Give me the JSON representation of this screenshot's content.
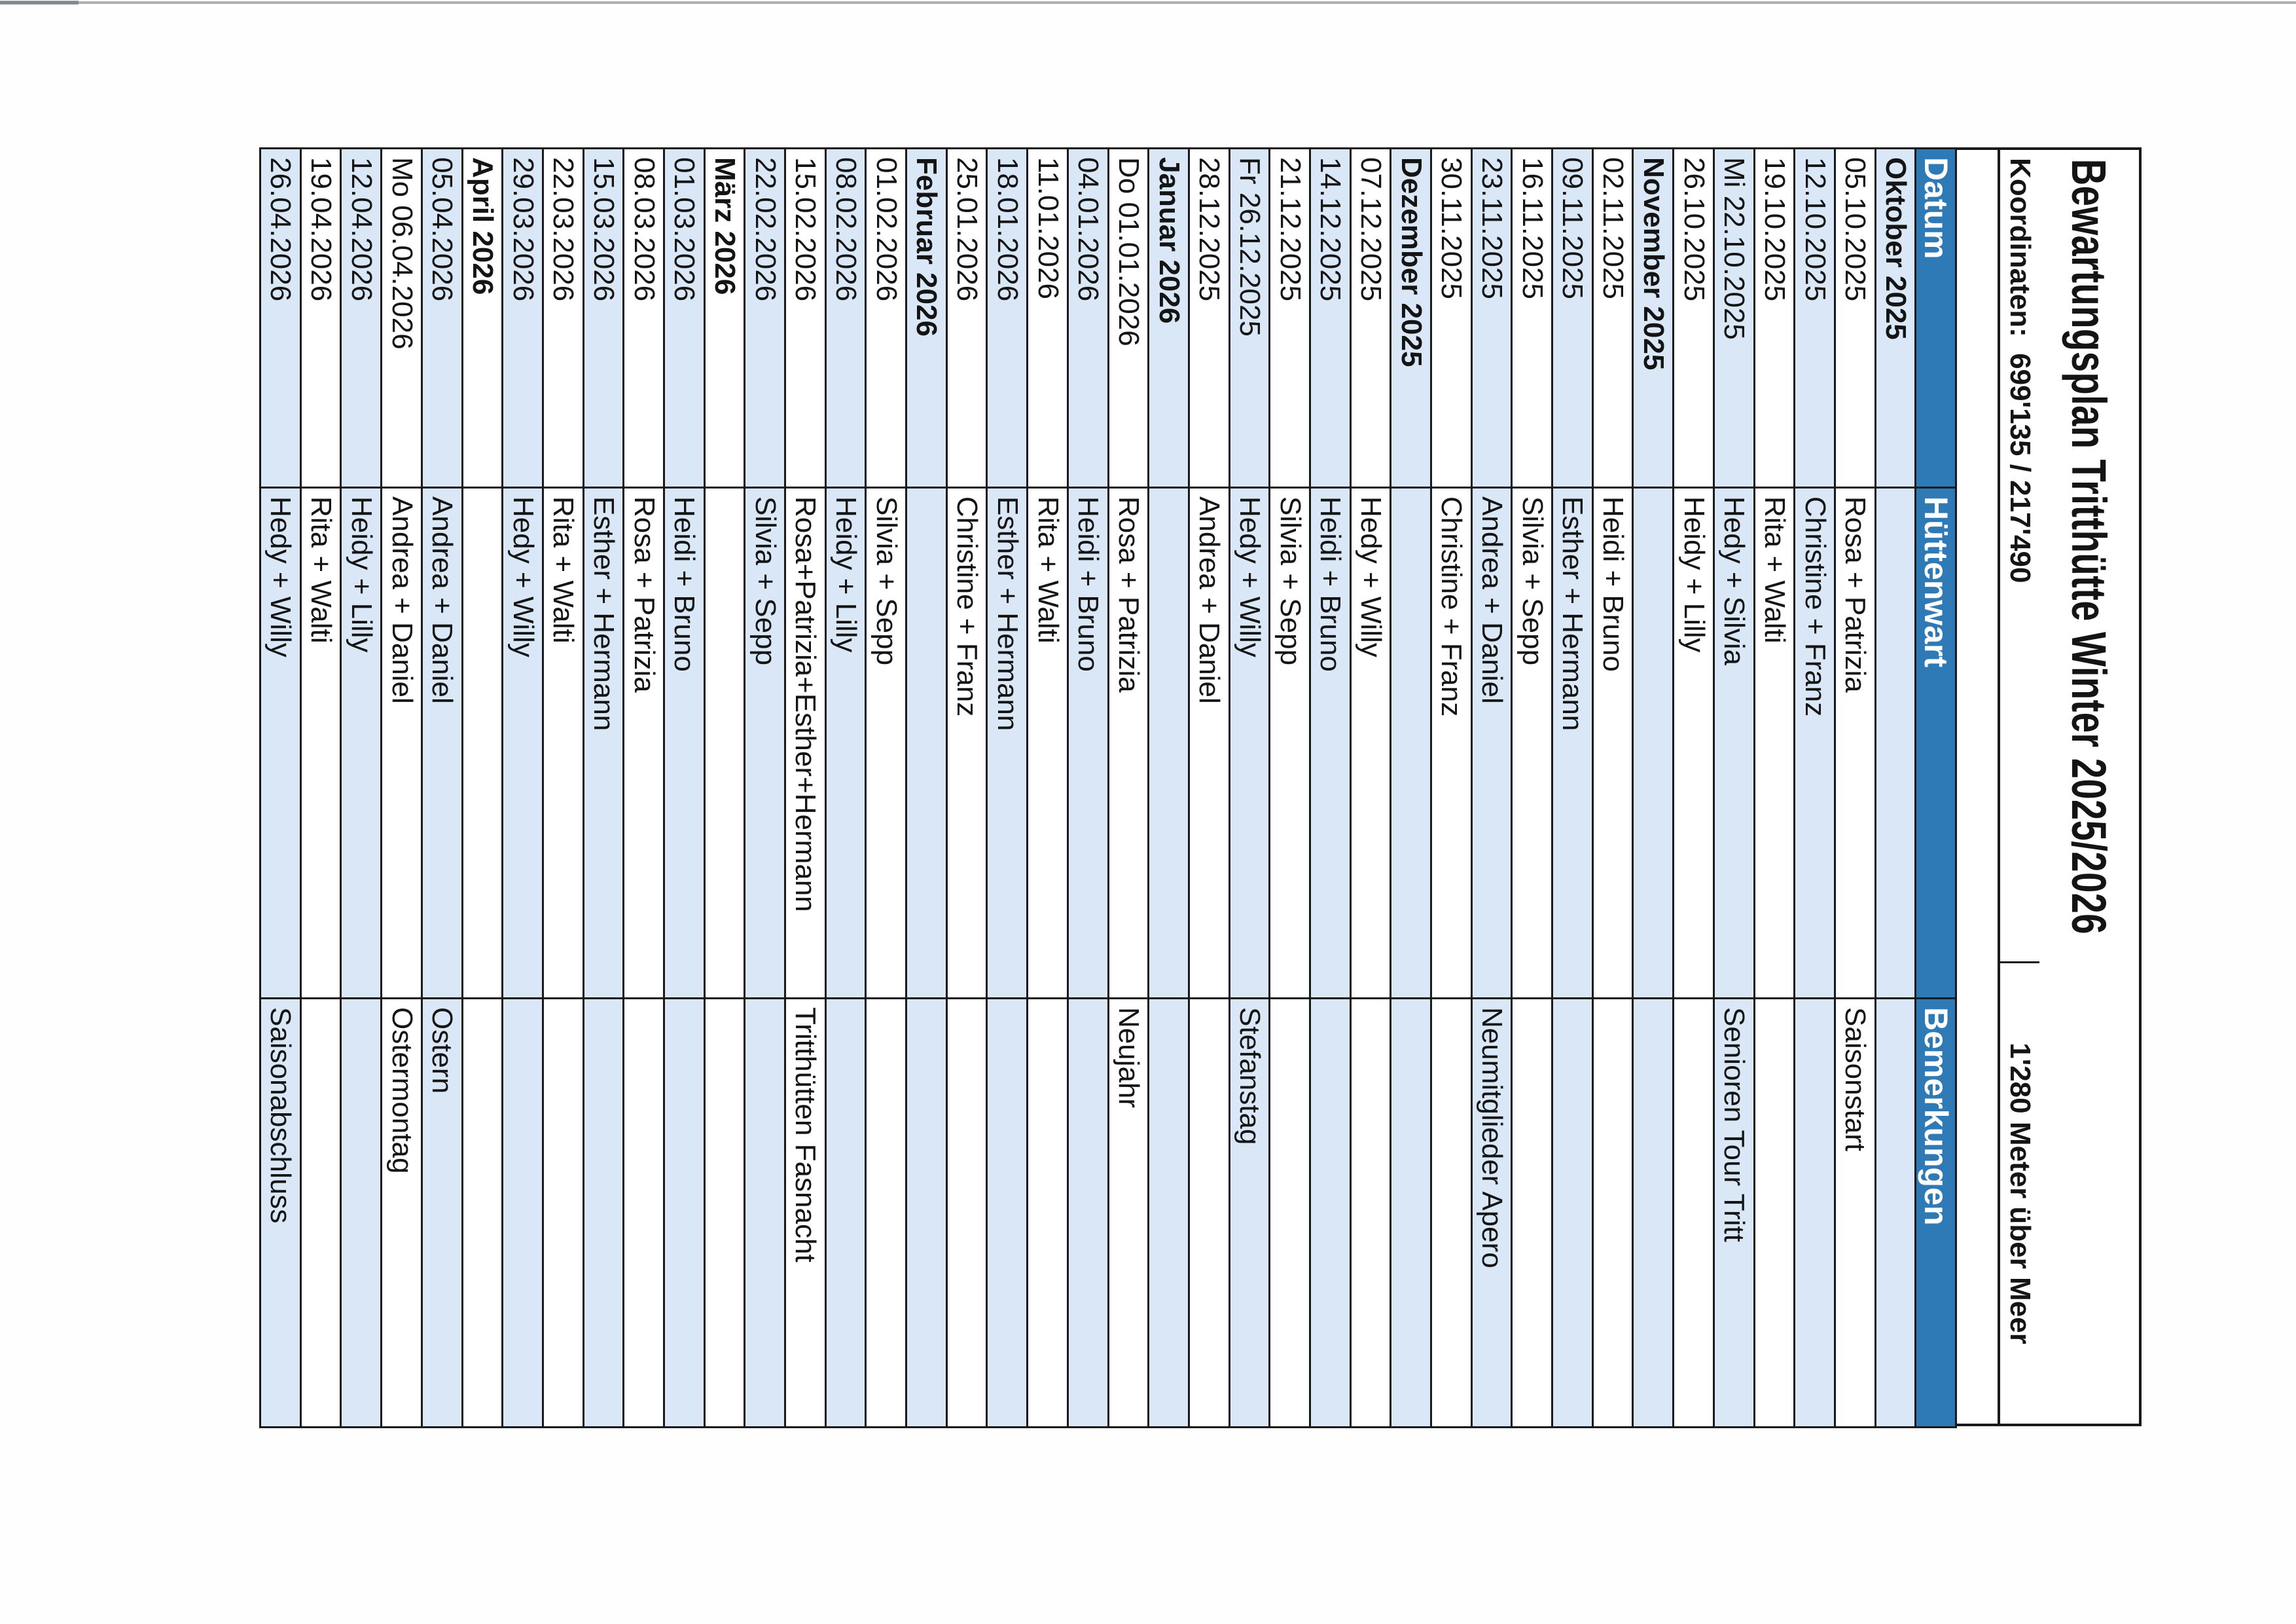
{
  "page": {
    "title": "Bewartungsplan Tritthütte Winter 2025/2026",
    "coordinates": "Koordinaten:  699'135 / 217'490",
    "altitude": "1'280 Meter über Meer"
  },
  "colors": {
    "header_blue": "#2e7ab7",
    "row_stripe": "#d9e7f6",
    "border": "#1a1a1a"
  },
  "table": {
    "columns": [
      "Datum",
      "Hüttenwart",
      "Bemerkungen"
    ],
    "rows": [
      {
        "type": "month",
        "datum": "Oktober 2025",
        "huettenwart": "",
        "bemerkung": ""
      },
      {
        "type": "day",
        "datum": "05.10.2025",
        "huettenwart": "Rosa + Patrizia",
        "bemerkung": "Saisonstart"
      },
      {
        "type": "day",
        "datum": "12.10.2025",
        "huettenwart": "Christine + Franz",
        "bemerkung": ""
      },
      {
        "type": "day",
        "datum": "19.10.2025",
        "huettenwart": "Rita + Walti",
        "bemerkung": ""
      },
      {
        "type": "day",
        "datum": "Mi 22.10.2025",
        "huettenwart": "Hedy + Silvia",
        "bemerkung": "Senioren Tour Tritt"
      },
      {
        "type": "day",
        "datum": "26.10.2025",
        "huettenwart": "Heidy + Lilly",
        "bemerkung": ""
      },
      {
        "type": "month",
        "datum": "November 2025",
        "huettenwart": "",
        "bemerkung": ""
      },
      {
        "type": "day",
        "datum": "02.11.2025",
        "huettenwart": "Heidi + Bruno",
        "bemerkung": ""
      },
      {
        "type": "day",
        "datum": "09.11.2025",
        "huettenwart": "Esther + Hermann",
        "bemerkung": ""
      },
      {
        "type": "day",
        "datum": "16.11.2025",
        "huettenwart": "Silvia + Sepp",
        "bemerkung": ""
      },
      {
        "type": "day",
        "datum": "23.11.2025",
        "huettenwart": "Andrea + Daniel",
        "bemerkung": "Neumitglieder Apero"
      },
      {
        "type": "day",
        "datum": "30.11.2025",
        "huettenwart": "Christine + Franz",
        "bemerkung": ""
      },
      {
        "type": "month",
        "datum": "Dezember 2025",
        "huettenwart": "",
        "bemerkung": ""
      },
      {
        "type": "day",
        "datum": "07.12.2025",
        "huettenwart": "Hedy + Willy",
        "bemerkung": ""
      },
      {
        "type": "day",
        "datum": "14.12.2025",
        "huettenwart": "Heidi + Bruno",
        "bemerkung": ""
      },
      {
        "type": "day",
        "datum": "21.12.2025",
        "huettenwart": "Silvia + Sepp",
        "bemerkung": ""
      },
      {
        "type": "day",
        "datum": "Fr 26.12.2025",
        "huettenwart": "Hedy + Willy",
        "bemerkung": "Stefanstag"
      },
      {
        "type": "day",
        "datum": "28.12.2025",
        "huettenwart": "Andrea + Daniel",
        "bemerkung": ""
      },
      {
        "type": "month",
        "datum": "Januar 2026",
        "huettenwart": "",
        "bemerkung": ""
      },
      {
        "type": "day",
        "datum": "Do 01.01.2026",
        "huettenwart": "Rosa + Patrizia",
        "bemerkung": "Neujahr"
      },
      {
        "type": "day",
        "datum": "04.01.2026",
        "huettenwart": "Heidi + Bruno",
        "bemerkung": ""
      },
      {
        "type": "day",
        "datum": "11.01.2026",
        "huettenwart": "Rita + Walti",
        "bemerkung": ""
      },
      {
        "type": "day",
        "datum": "18.01.2026",
        "huettenwart": "Esther + Hermann",
        "bemerkung": ""
      },
      {
        "type": "day",
        "datum": "25.01.2026",
        "huettenwart": "Christine + Franz",
        "bemerkung": ""
      },
      {
        "type": "month",
        "datum": "Februar 2026",
        "huettenwart": "",
        "bemerkung": ""
      },
      {
        "type": "day",
        "datum": "01.02.2026",
        "huettenwart": "Silvia + Sepp",
        "bemerkung": ""
      },
      {
        "type": "day",
        "datum": "08.02.2026",
        "huettenwart": "Heidy + Lilly",
        "bemerkung": ""
      },
      {
        "type": "day",
        "datum": "15.02.2026",
        "huettenwart": "Rosa+Patrizia+Esther+Hermann",
        "bemerkung": "Tritthütten Fasnacht"
      },
      {
        "type": "day",
        "datum": "22.02.2026",
        "huettenwart": "Silvia + Sepp",
        "bemerkung": ""
      },
      {
        "type": "month",
        "datum": "März 2026",
        "huettenwart": "",
        "bemerkung": ""
      },
      {
        "type": "day",
        "datum": "01.03.2026",
        "huettenwart": "Heidi + Bruno",
        "bemerkung": ""
      },
      {
        "type": "day",
        "datum": "08.03.2026",
        "huettenwart": "Rosa + Patrizia",
        "bemerkung": ""
      },
      {
        "type": "day",
        "datum": "15.03.2026",
        "huettenwart": "Esther + Hermann",
        "bemerkung": ""
      },
      {
        "type": "day",
        "datum": "22.03.2026",
        "huettenwart": "Rita + Walti",
        "bemerkung": ""
      },
      {
        "type": "day",
        "datum": "29.03.2026",
        "huettenwart": "Hedy + Willy",
        "bemerkung": ""
      },
      {
        "type": "month",
        "datum": "April 2026",
        "huettenwart": "",
        "bemerkung": ""
      },
      {
        "type": "day",
        "datum": "05.04.2026",
        "huettenwart": "Andrea + Daniel",
        "bemerkung": "Ostern"
      },
      {
        "type": "day",
        "datum": "Mo 06.04.2026",
        "huettenwart": "Andrea + Daniel",
        "bemerkung": "Ostermontag"
      },
      {
        "type": "day",
        "datum": "12.04.2026",
        "huettenwart": "Heidy + Lilly",
        "bemerkung": ""
      },
      {
        "type": "day",
        "datum": "19.04.2026",
        "huettenwart": "Rita + Walti",
        "bemerkung": ""
      },
      {
        "type": "day",
        "datum": "26.04.2026",
        "huettenwart": "Hedy + Willy",
        "bemerkung": "Saisonabschluss"
      }
    ]
  }
}
